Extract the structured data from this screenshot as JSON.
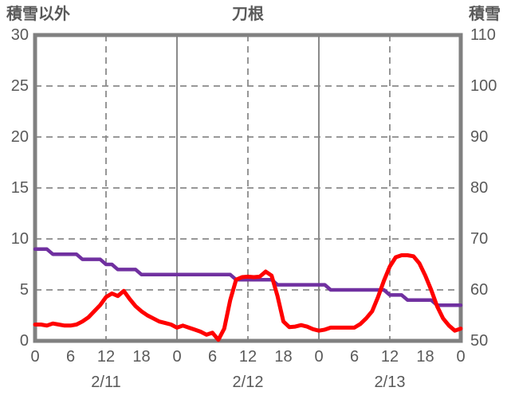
{
  "chart": {
    "title": "刀根",
    "left_axis_title": "積雪以外",
    "right_axis_title": "積雪"
  },
  "chart_data": {
    "type": "line",
    "title": "刀根",
    "grid": true,
    "background": "#ffffff",
    "frame_color": "#808080",
    "grid_color": "#8a8a8a",
    "text_color": "#595959",
    "left_axis": {
      "title": "積雪以外",
      "range": [
        0,
        30
      ],
      "tick_labels": [
        "30",
        "25",
        "20",
        "15",
        "10",
        "5",
        "0"
      ],
      "tick_values": [
        30,
        25,
        20,
        15,
        10,
        5,
        0
      ],
      "dashed_gridline_values": [
        25,
        20,
        15,
        10,
        5
      ]
    },
    "right_axis": {
      "title": "積雪",
      "range": [
        50,
        110
      ],
      "tick_labels": [
        "110",
        "100",
        "90",
        "80",
        "70",
        "60",
        "50"
      ],
      "tick_values": [
        110,
        100,
        90,
        80,
        70,
        60,
        50
      ]
    },
    "x_axis": {
      "hours_total": 72,
      "hour_tick_step": 6,
      "hour_tick_labels": [
        "0",
        "6",
        "12",
        "18",
        "0",
        "6",
        "12",
        "18",
        "0",
        "6",
        "12",
        "18",
        "0"
      ],
      "date_labels": [
        {
          "label": "2/11",
          "center_hour": 12
        },
        {
          "label": "2/12",
          "center_hour": 36
        },
        {
          "label": "2/13",
          "center_hour": 60
        }
      ],
      "solid_gridline_hours": [
        24,
        48
      ],
      "dashed_gridline_hours": [
        12,
        36,
        60
      ]
    },
    "series": [
      {
        "name": "積雪",
        "axis": "right",
        "color": "#7030a0",
        "stroke_width": 4.5,
        "x_step_hours": 1,
        "values": [
          68,
          68,
          68,
          67,
          67,
          67,
          67,
          67,
          66,
          66,
          66,
          66,
          65,
          65,
          64,
          64,
          64,
          64,
          63,
          63,
          63,
          63,
          63,
          63,
          63,
          63,
          63,
          63,
          63,
          63,
          63,
          63,
          63,
          63,
          62,
          62,
          62,
          62,
          62,
          62,
          62,
          61,
          61,
          61,
          61,
          61,
          61,
          61,
          61,
          61,
          60,
          60,
          60,
          60,
          60,
          60,
          60,
          60,
          60,
          60,
          59,
          59,
          59,
          58,
          58,
          58,
          58,
          58,
          57,
          57,
          57,
          57,
          57
        ]
      },
      {
        "name": "積雪以外",
        "axis": "left",
        "color": "#ff0000",
        "stroke_width": 5,
        "x_step_hours": 1,
        "values": [
          1.6,
          1.6,
          1.5,
          1.7,
          1.6,
          1.5,
          1.5,
          1.6,
          1.9,
          2.3,
          2.9,
          3.5,
          4.3,
          4.65,
          4.4,
          4.9,
          4.1,
          3.4,
          2.9,
          2.5,
          2.2,
          1.9,
          1.75,
          1.6,
          1.3,
          1.5,
          1.3,
          1.1,
          0.9,
          0.6,
          0.8,
          0.1,
          1.2,
          4.0,
          6.0,
          6.25,
          6.3,
          6.25,
          6.3,
          6.8,
          6.4,
          4.4,
          1.9,
          1.35,
          1.4,
          1.55,
          1.4,
          1.15,
          1.0,
          1.1,
          1.3,
          1.3,
          1.3,
          1.3,
          1.3,
          1.65,
          2.2,
          2.9,
          4.3,
          5.9,
          7.3,
          8.2,
          8.4,
          8.4,
          8.3,
          7.6,
          6.4,
          5.0,
          3.4,
          2.2,
          1.5,
          1.0,
          1.2
        ]
      }
    ]
  }
}
